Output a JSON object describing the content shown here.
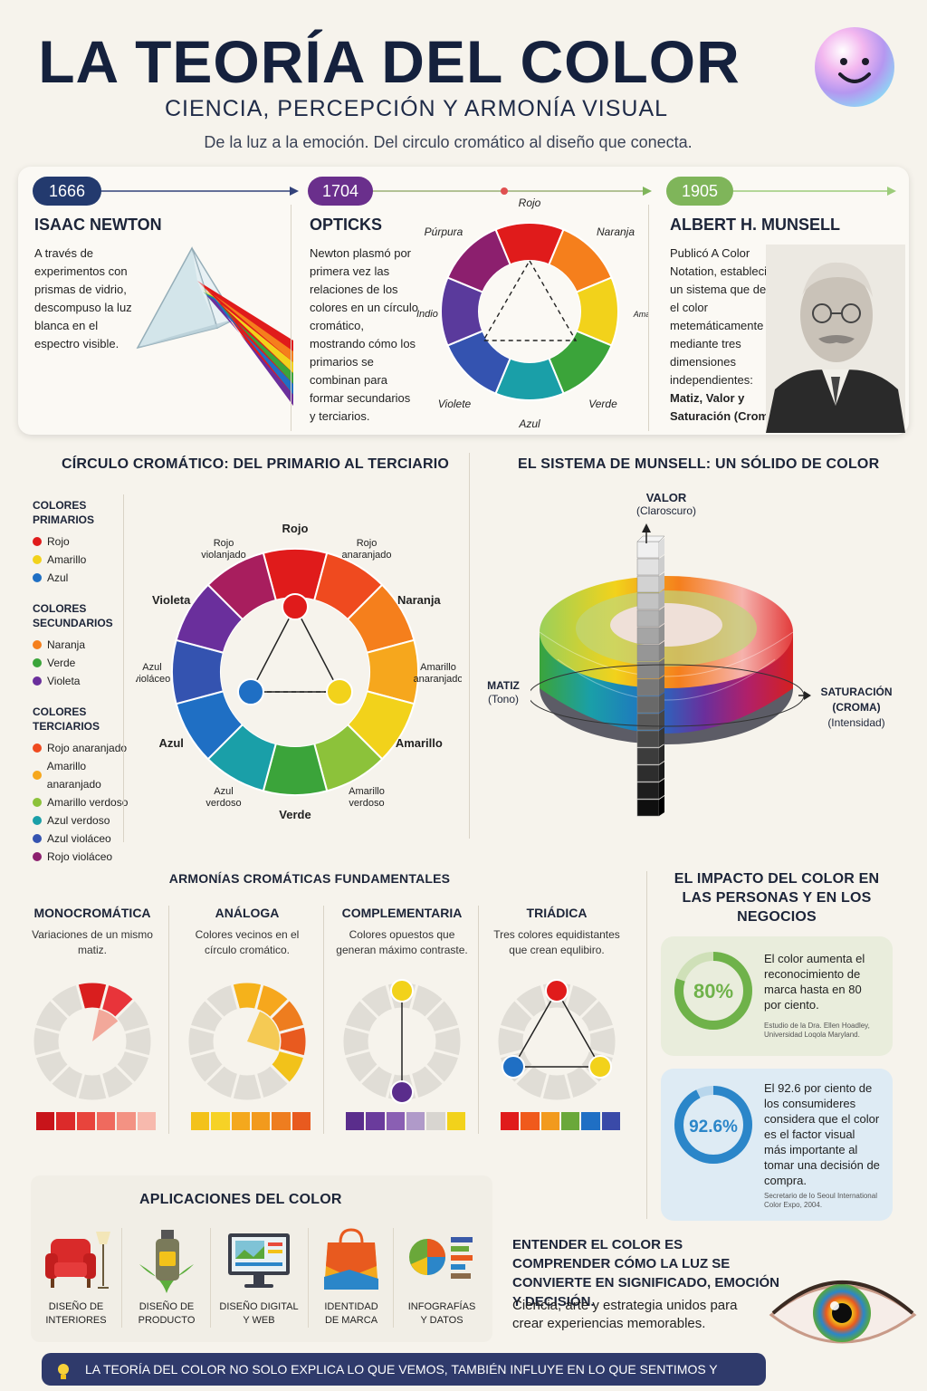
{
  "header": {
    "title": "LA TEORÍA DEL COLOR",
    "subtitle": "CIENCIA, PERCEPCIÓN Y ARMONÍA VISUAL",
    "tagline": "De la luz a la emoción. Del circulo cromático al diseño que conecta."
  },
  "timeline": [
    {
      "year": "1666",
      "name": "ISAAC NEWTON",
      "text": "A través de experimentos con prismas de vidrio, descompuso la luz blanca en el espectro visible.",
      "color": "#233a6e"
    },
    {
      "year": "1704",
      "name": "OPTICKS",
      "text": "Newton plasmó por primera vez las relaciones de los colores en un círculo cromático, mostrando cómo los primarios se combinan para formar secundarios y terciarios.",
      "color": "#6a2f8c"
    },
    {
      "year": "1905",
      "name": "ALBERT H. MUNSELL",
      "text": "Publicó A Color Notation, estableciendo un sistema que define el color metemáticamente mediante tres dimensiones independientes:",
      "text_bold": "Matiz, Valor y Saturación (Croma).",
      "color": "#7fb55a"
    }
  ],
  "opticks_wheel": {
    "labels": [
      "Rojo",
      "Naranja",
      "Amarillo",
      "Verde",
      "Azul",
      "Violete",
      "Indio",
      "Púrpura"
    ]
  },
  "wheel_section": {
    "title": "CÍRCULO CROMÁTICO: DEL PRIMARIO AL TERCIARIO",
    "groups": [
      {
        "heading": "COLORES PRIMARIOS",
        "items": [
          {
            "label": "Rojo",
            "color": "#e01b1b"
          },
          {
            "label": "Amarillo",
            "color": "#f2d21b"
          },
          {
            "label": "Azul",
            "color": "#1f6fc4"
          }
        ]
      },
      {
        "heading": "COLORES SECUNDARIOS",
        "items": [
          {
            "label": "Naranja",
            "color": "#f57f1c"
          },
          {
            "label": "Verde",
            "color": "#3ba43a"
          },
          {
            "label": "Violeta",
            "color": "#6a2f9c"
          }
        ]
      },
      {
        "heading": "COLORES TERCIARIOS",
        "items": [
          {
            "label": "Rojo anaranjado",
            "color": "#ef4a1f"
          },
          {
            "label": "Amarillo anaranjado",
            "color": "#f6a71d"
          },
          {
            "label": "Amarillo verdoso",
            "color": "#8cc23a"
          },
          {
            "label": "Azul verdoso",
            "color": "#1a9fa8"
          },
          {
            "label": "Azul violáceo",
            "color": "#3453b0"
          },
          {
            "label": "Rojo violáceo",
            "color": "#8c1f6e"
          }
        ]
      }
    ],
    "wheel_labels": [
      "Rojo",
      "Rojo anaranjado",
      "Naranja",
      "Amarillo anaranjado",
      "Amarillo",
      "Amarillo verdoso",
      "Verde",
      "Azul verdoso",
      "Azul",
      "Azul violáceo",
      "Violeta",
      "Rojo violanjado"
    ]
  },
  "munsell": {
    "title": "EL SISTEMA DE MUNSELL: UN SÓLIDO DE COLOR",
    "valor": "VALOR",
    "valor_sub": "(Claroscuro)",
    "matiz": "MATIZ",
    "matiz_sub": "(Tono)",
    "sat": "SATURACIÓN",
    "sat2": "(CROMA)",
    "sat_sub": "(Intensidad)"
  },
  "harmonies": {
    "title": "ARMONÍAS CROMÁTICAS FUNDAMENTALES",
    "items": [
      {
        "name": "MONOCROMÁTICA",
        "desc": "Variaciones de un mismo matiz.",
        "swatches": [
          "#c8141a",
          "#dc2a2a",
          "#e8443c",
          "#ef6a5e",
          "#f39283",
          "#f7b9ad"
        ]
      },
      {
        "name": "ANÁLOGA",
        "desc": "Colores vecinos en el círculo cromático.",
        "swatches": [
          "#f3c21a",
          "#f6d226",
          "#f4a81d",
          "#f29a1d",
          "#ee7d1f",
          "#e85a1f"
        ]
      },
      {
        "name": "COMPLEMENTARIA",
        "desc": "Colores opuestos que generan máximo contraste.",
        "swatches": [
          "#5a2d8c",
          "#6a3b9c",
          "#8a5fb3",
          "#b09ac9",
          "#d8d5d0",
          "#f2d21b"
        ]
      },
      {
        "name": "TRIÁDICA",
        "desc": "Tres colores equidistantes que crean equlibiro.",
        "swatches": [
          "#e01b1b",
          "#f05a1c",
          "#f29a1d",
          "#6aa83a",
          "#1f6fc4",
          "#3a4aa8"
        ]
      }
    ]
  },
  "impact": {
    "title": "EL IMPACTO DEL COLOR EN LAS PERSONAS Y EN LOS NEGOCIOS",
    "stats": [
      {
        "value": "80%",
        "fraction": 0.8,
        "text": "El color aumenta el reconocimiento de marca hasta en 80 por ciento.",
        "source": "Estudio de la Dra. Ellen Hoadley, Universidad Loqola Maryland.",
        "color": "#6fb24a"
      },
      {
        "value": "92.6%",
        "fraction": 0.926,
        "text": "El 92.6 por ciento de los consumideres considera que el color es el factor visual más importante al tomar una decisión de compra.",
        "source": "Secretario de lo Seoul International Color Expo, 2004.",
        "color": "#2b86c9"
      }
    ]
  },
  "applications": {
    "title": "APLICACIONES DEL COLOR",
    "items": [
      "DISEÑO DE INTERIORES",
      "DISEÑO DE PRODUCTO",
      "DISEÑO DIGITAL Y WEB",
      "IDENTIDAD DE MARCA",
      "INFOGRAFÍAS Y DATOS"
    ],
    "statement": "ENTENDER EL COLOR ES COMPRENDER CÓMO LA LUZ SE CONVIERTE EN SIGNIFICADO, EMOCIÓN Y DECISIÓN.",
    "statement_sub": "Ciencia, arte y estrategia unidos para crear experiencias memorables."
  },
  "footer": "LA TEORÍA DEL COLOR NO SOLO EXPLICA LO QUE VEMOS, TAMBIÉN INFLUYE EN LO QUE SENTIMOS Y ELEGIMOS."
}
